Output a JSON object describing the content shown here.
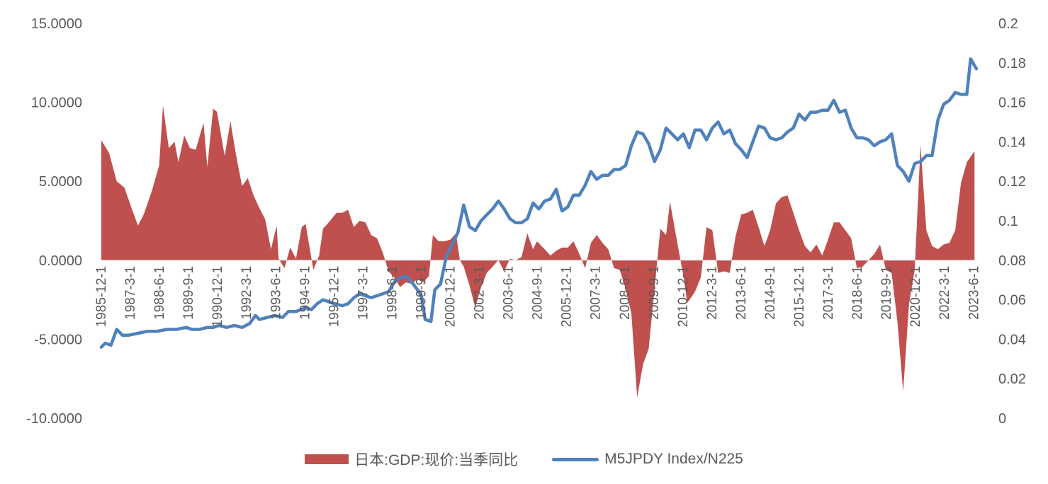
{
  "chart_data": {
    "type": "area+line",
    "title": "",
    "left_axis": {
      "min": -10,
      "max": 15,
      "ticks": [
        -10,
        -5,
        0,
        5,
        10,
        15
      ],
      "tick_labels": [
        "-10.0000",
        "-5.0000",
        "0.0000",
        "5.0000",
        "10.0000",
        "15.0000"
      ]
    },
    "right_axis": {
      "min": 0,
      "max": 0.2,
      "ticks": [
        0,
        0.02,
        0.04,
        0.06,
        0.08,
        0.1,
        0.12,
        0.14,
        0.16,
        0.18,
        0.2
      ],
      "tick_labels": [
        "0",
        "0.02",
        "0.04",
        "0.06",
        "0.08",
        "0.1",
        "0.12",
        "0.14",
        "0.16",
        "0.18",
        "0.2"
      ]
    },
    "x_start": "1985-12-1",
    "x_end": "2023-12-1",
    "x_tick_labels": [
      "1985-12-1",
      "1987-3-1",
      "1988-6-1",
      "1989-9-1",
      "1990-12-1",
      "1992-3-1",
      "1993-6-1",
      "1994-9-1",
      "1995-12-1",
      "1997-3-1",
      "1998-6-1",
      "1999-9-1",
      "2000-12-1",
      "2002-3-1",
      "2003-6-1",
      "2004-9-1",
      "2005-12-1",
      "2007-3-1",
      "2008-6-1",
      "2009-9-1",
      "2010-12-1",
      "2012-3-1",
      "2013-6-1",
      "2014-9-1",
      "2015-12-1",
      "2017-3-1",
      "2018-6-1",
      "2019-9-1",
      "2020-12-1",
      "2022-3-1",
      "2023-6-1"
    ],
    "gdp_anchors": [
      [
        1985.917,
        7.6
      ],
      [
        1986.25,
        6.8
      ],
      [
        1986.583,
        5.0
      ],
      [
        1986.917,
        4.6
      ],
      [
        1987.25,
        3.2
      ],
      [
        1987.5,
        2.2
      ],
      [
        1987.75,
        2.9
      ],
      [
        1988.083,
        4.3
      ],
      [
        1988.417,
        6.0
      ],
      [
        1988.583,
        9.8
      ],
      [
        1988.833,
        7.1
      ],
      [
        1989.083,
        7.5
      ],
      [
        1989.25,
        6.2
      ],
      [
        1989.5,
        7.9
      ],
      [
        1989.75,
        7.1
      ],
      [
        1990.0,
        7.0
      ],
      [
        1990.333,
        8.7
      ],
      [
        1990.5,
        5.9
      ],
      [
        1990.75,
        9.6
      ],
      [
        1990.917,
        9.4
      ],
      [
        1991.25,
        6.6
      ],
      [
        1991.5,
        8.8
      ],
      [
        1991.75,
        6.6
      ],
      [
        1992.0,
        4.7
      ],
      [
        1992.25,
        5.2
      ],
      [
        1992.5,
        4.1
      ],
      [
        1992.75,
        3.3
      ],
      [
        1993.0,
        2.6
      ],
      [
        1993.25,
        0.7
      ],
      [
        1993.5,
        2.2
      ],
      [
        1993.583,
        0.1
      ],
      [
        1993.833,
        -0.5
      ],
      [
        1994.083,
        0.8
      ],
      [
        1994.333,
        0.1
      ],
      [
        1994.583,
        2.1
      ],
      [
        1994.75,
        2.3
      ],
      [
        1995.083,
        -0.6
      ],
      [
        1995.333,
        0.3
      ],
      [
        1995.5,
        2.0
      ],
      [
        1995.75,
        2.4
      ],
      [
        1996.083,
        3.0
      ],
      [
        1996.333,
        3.0
      ],
      [
        1996.583,
        3.2
      ],
      [
        1996.833,
        2.1
      ],
      [
        1997.083,
        2.5
      ],
      [
        1997.333,
        2.4
      ],
      [
        1997.583,
        1.6
      ],
      [
        1997.833,
        1.4
      ],
      [
        1998.083,
        0.5
      ],
      [
        1998.333,
        -0.7
      ],
      [
        1998.583,
        -1.1
      ],
      [
        1998.833,
        -1.7
      ],
      [
        1999.083,
        -1.4
      ],
      [
        1999.333,
        -1.5
      ],
      [
        1999.583,
        -1.2
      ],
      [
        1999.833,
        -1.4
      ],
      [
        2000.083,
        -1.0
      ],
      [
        2000.25,
        1.6
      ],
      [
        2000.5,
        1.2
      ],
      [
        2000.75,
        1.2
      ],
      [
        2001.0,
        1.3
      ],
      [
        2001.25,
        1.7
      ],
      [
        2001.417,
        0.0
      ],
      [
        2001.583,
        -0.4
      ],
      [
        2001.833,
        -1.6
      ],
      [
        2002.083,
        -3.0
      ],
      [
        2002.333,
        -1.7
      ],
      [
        2002.583,
        -0.8
      ],
      [
        2002.833,
        -0.4
      ],
      [
        2003.083,
        0.0
      ],
      [
        2003.333,
        -0.7
      ],
      [
        2003.583,
        0.1
      ],
      [
        2003.833,
        0.0
      ],
      [
        2004.083,
        0.2
      ],
      [
        2004.333,
        1.7
      ],
      [
        2004.583,
        0.7
      ],
      [
        2004.75,
        1.2
      ],
      [
        2005.083,
        0.7
      ],
      [
        2005.333,
        0.3
      ],
      [
        2005.583,
        0.6
      ],
      [
        2005.833,
        0.8
      ],
      [
        2006.083,
        0.8
      ],
      [
        2006.333,
        1.2
      ],
      [
        2006.583,
        0.4
      ],
      [
        2006.833,
        -0.5
      ],
      [
        2007.083,
        1.1
      ],
      [
        2007.333,
        1.6
      ],
      [
        2007.583,
        1.1
      ],
      [
        2007.833,
        0.7
      ],
      [
        2008.083,
        -0.5
      ],
      [
        2008.333,
        -0.6
      ],
      [
        2008.583,
        -1.8
      ],
      [
        2008.833,
        -3.4
      ],
      [
        2009.083,
        -8.7
      ],
      [
        2009.333,
        -6.6
      ],
      [
        2009.583,
        -5.6
      ],
      [
        2009.833,
        -1.8
      ],
      [
        2010.083,
        2.0
      ],
      [
        2010.333,
        1.6
      ],
      [
        2010.5,
        3.7
      ],
      [
        2010.833,
        1.0
      ],
      [
        2011.083,
        -1.0
      ],
      [
        2011.25,
        -2.7
      ],
      [
        2011.583,
        -2.0
      ],
      [
        2011.833,
        -1.1
      ],
      [
        2012.083,
        2.1
      ],
      [
        2012.333,
        1.9
      ],
      [
        2012.583,
        -0.8
      ],
      [
        2012.833,
        -0.7
      ],
      [
        2013.083,
        -0.8
      ],
      [
        2013.333,
        1.5
      ],
      [
        2013.583,
        2.9
      ],
      [
        2013.833,
        3.0
      ],
      [
        2014.083,
        3.2
      ],
      [
        2014.333,
        2.1
      ],
      [
        2014.583,
        0.9
      ],
      [
        2014.833,
        1.9
      ],
      [
        2015.083,
        3.6
      ],
      [
        2015.333,
        4.0
      ],
      [
        2015.583,
        4.1
      ],
      [
        2015.833,
        3.0
      ],
      [
        2016.083,
        1.9
      ],
      [
        2016.333,
        0.9
      ],
      [
        2016.583,
        0.5
      ],
      [
        2016.833,
        1.0
      ],
      [
        2017.083,
        0.3
      ],
      [
        2017.333,
        1.3
      ],
      [
        2017.583,
        2.4
      ],
      [
        2017.833,
        2.4
      ],
      [
        2018.083,
        1.9
      ],
      [
        2018.333,
        1.4
      ],
      [
        2018.583,
        -0.5
      ],
      [
        2018.833,
        -0.4
      ],
      [
        2019.083,
        0.0
      ],
      [
        2019.333,
        0.4
      ],
      [
        2019.583,
        1.0
      ],
      [
        2019.833,
        -0.6
      ],
      [
        2020.083,
        -0.8
      ],
      [
        2020.333,
        -3.9
      ],
      [
        2020.583,
        -8.3
      ],
      [
        2020.833,
        -2.8
      ],
      [
        2021.083,
        -0.6
      ],
      [
        2021.333,
        7.3
      ],
      [
        2021.583,
        1.9
      ],
      [
        2021.833,
        0.9
      ],
      [
        2022.083,
        0.7
      ],
      [
        2022.333,
        1.0
      ],
      [
        2022.583,
        1.1
      ],
      [
        2022.833,
        1.9
      ],
      [
        2023.083,
        4.9
      ],
      [
        2023.333,
        6.2
      ],
      [
        2023.667,
        6.9
      ]
    ],
    "ratio_anchors": [
      [
        1985.917,
        0.036
      ],
      [
        1986.083,
        0.038
      ],
      [
        1986.333,
        0.037
      ],
      [
        1986.583,
        0.045
      ],
      [
        1986.833,
        0.042
      ],
      [
        1987.083,
        0.042
      ],
      [
        1987.5,
        0.043
      ],
      [
        1987.917,
        0.044
      ],
      [
        1988.333,
        0.044
      ],
      [
        1988.75,
        0.045
      ],
      [
        1989.167,
        0.045
      ],
      [
        1989.583,
        0.046
      ],
      [
        1989.833,
        0.045
      ],
      [
        1990.167,
        0.045
      ],
      [
        1990.5,
        0.046
      ],
      [
        1990.75,
        0.046
      ],
      [
        1991.0,
        0.047
      ],
      [
        1991.333,
        0.046
      ],
      [
        1991.667,
        0.047
      ],
      [
        1992.0,
        0.046
      ],
      [
        1992.333,
        0.048
      ],
      [
        1992.583,
        0.052
      ],
      [
        1992.75,
        0.05
      ],
      [
        1993.083,
        0.051
      ],
      [
        1993.417,
        0.052
      ],
      [
        1993.75,
        0.051
      ],
      [
        1994.0,
        0.054
      ],
      [
        1994.333,
        0.054
      ],
      [
        1994.75,
        0.056
      ],
      [
        1995.0,
        0.055
      ],
      [
        1995.25,
        0.058
      ],
      [
        1995.5,
        0.06
      ],
      [
        1995.75,
        0.059
      ],
      [
        1996.0,
        0.058
      ],
      [
        1996.333,
        0.057
      ],
      [
        1996.583,
        0.058
      ],
      [
        1996.833,
        0.061
      ],
      [
        1997.083,
        0.063
      ],
      [
        1997.333,
        0.062
      ],
      [
        1997.583,
        0.061
      ],
      [
        1997.833,
        0.062
      ],
      [
        1998.083,
        0.063
      ],
      [
        1998.333,
        0.064
      ],
      [
        1998.583,
        0.069
      ],
      [
        1998.833,
        0.071
      ],
      [
        1999.083,
        0.072
      ],
      [
        1999.333,
        0.069
      ],
      [
        1999.583,
        0.065
      ],
      [
        1999.75,
        0.062
      ],
      [
        1999.917,
        0.05
      ],
      [
        2000.167,
        0.049
      ],
      [
        2000.333,
        0.065
      ],
      [
        2000.583,
        0.068
      ],
      [
        2000.833,
        0.082
      ],
      [
        2001.083,
        0.088
      ],
      [
        2001.333,
        0.094
      ],
      [
        2001.583,
        0.108
      ],
      [
        2001.833,
        0.097
      ],
      [
        2002.083,
        0.095
      ],
      [
        2002.333,
        0.1
      ],
      [
        2002.583,
        0.103
      ],
      [
        2002.833,
        0.106
      ],
      [
        2003.083,
        0.11
      ],
      [
        2003.333,
        0.106
      ],
      [
        2003.583,
        0.101
      ],
      [
        2003.833,
        0.099
      ],
      [
        2004.083,
        0.099
      ],
      [
        2004.333,
        0.101
      ],
      [
        2004.583,
        0.109
      ],
      [
        2004.833,
        0.106
      ],
      [
        2005.083,
        0.11
      ],
      [
        2005.333,
        0.111
      ],
      [
        2005.583,
        0.116
      ],
      [
        2005.833,
        0.105
      ],
      [
        2006.083,
        0.107
      ],
      [
        2006.333,
        0.113
      ],
      [
        2006.583,
        0.113
      ],
      [
        2006.833,
        0.118
      ],
      [
        2007.083,
        0.125
      ],
      [
        2007.333,
        0.121
      ],
      [
        2007.583,
        0.123
      ],
      [
        2007.833,
        0.123
      ],
      [
        2008.083,
        0.126
      ],
      [
        2008.333,
        0.126
      ],
      [
        2008.583,
        0.128
      ],
      [
        2008.833,
        0.138
      ],
      [
        2009.083,
        0.145
      ],
      [
        2009.333,
        0.144
      ],
      [
        2009.583,
        0.139
      ],
      [
        2009.833,
        0.13
      ],
      [
        2010.083,
        0.136
      ],
      [
        2010.333,
        0.147
      ],
      [
        2010.583,
        0.144
      ],
      [
        2010.833,
        0.141
      ],
      [
        2011.083,
        0.144
      ],
      [
        2011.333,
        0.137
      ],
      [
        2011.583,
        0.146
      ],
      [
        2011.833,
        0.146
      ],
      [
        2012.083,
        0.141
      ],
      [
        2012.333,
        0.147
      ],
      [
        2012.583,
        0.15
      ],
      [
        2012.833,
        0.144
      ],
      [
        2013.083,
        0.146
      ],
      [
        2013.333,
        0.139
      ],
      [
        2013.583,
        0.136
      ],
      [
        2013.833,
        0.132
      ],
      [
        2014.083,
        0.14
      ],
      [
        2014.333,
        0.148
      ],
      [
        2014.583,
        0.147
      ],
      [
        2014.833,
        0.142
      ],
      [
        2015.083,
        0.141
      ],
      [
        2015.333,
        0.142
      ],
      [
        2015.583,
        0.145
      ],
      [
        2015.833,
        0.147
      ],
      [
        2016.083,
        0.154
      ],
      [
        2016.333,
        0.151
      ],
      [
        2016.583,
        0.155
      ],
      [
        2016.833,
        0.155
      ],
      [
        2017.083,
        0.156
      ],
      [
        2017.333,
        0.156
      ],
      [
        2017.583,
        0.161
      ],
      [
        2017.833,
        0.155
      ],
      [
        2018.083,
        0.156
      ],
      [
        2018.333,
        0.147
      ],
      [
        2018.583,
        0.142
      ],
      [
        2018.833,
        0.142
      ],
      [
        2019.083,
        0.141
      ],
      [
        2019.333,
        0.138
      ],
      [
        2019.583,
        0.14
      ],
      [
        2019.833,
        0.141
      ],
      [
        2020.083,
        0.144
      ],
      [
        2020.333,
        0.128
      ],
      [
        2020.583,
        0.125
      ],
      [
        2020.833,
        0.12
      ],
      [
        2021.083,
        0.129
      ],
      [
        2021.333,
        0.13
      ],
      [
        2021.583,
        0.133
      ],
      [
        2021.833,
        0.133
      ],
      [
        2022.083,
        0.151
      ],
      [
        2022.333,
        0.159
      ],
      [
        2022.583,
        0.161
      ],
      [
        2022.833,
        0.165
      ],
      [
        2023.083,
        0.164
      ],
      [
        2023.333,
        0.164
      ],
      [
        2023.5,
        0.182
      ],
      [
        2023.75,
        0.177
      ]
    ],
    "series": [
      {
        "name": "日本:GDP:现价:当季同比",
        "type": "area",
        "axis": "left",
        "color": "#c0504d"
      },
      {
        "name": "M5JPDY Index/N225",
        "type": "line",
        "axis": "right",
        "color": "#4f81bd"
      }
    ],
    "legend_position": "bottom",
    "grid": false
  }
}
